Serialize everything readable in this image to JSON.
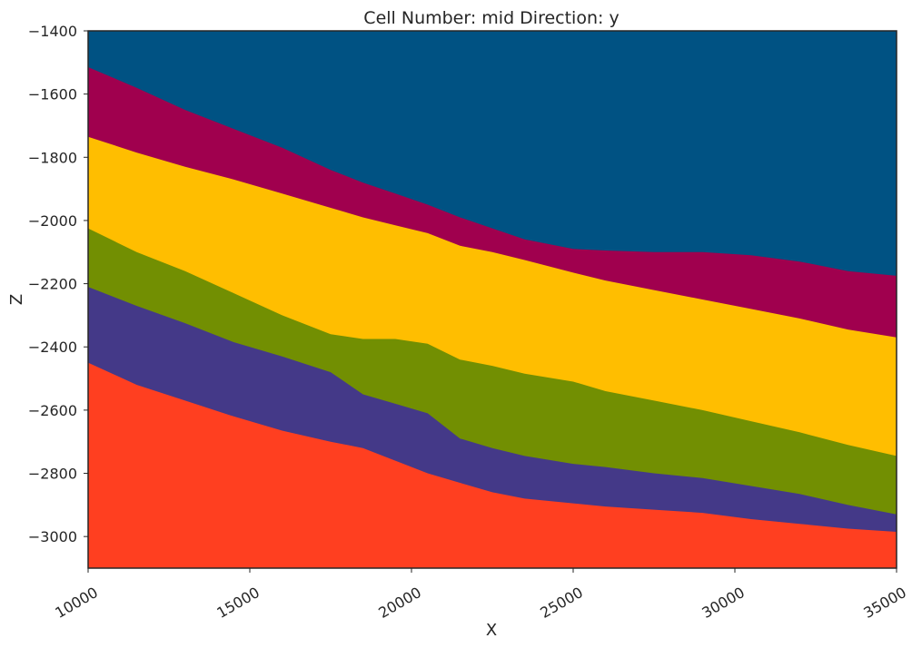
{
  "chart_data": {
    "type": "area",
    "title": "Cell Number: mid Direction: y",
    "xlabel": "X",
    "ylabel": "Z",
    "xlim": [
      10000,
      35000
    ],
    "ylim": [
      -3100,
      -1400
    ],
    "xticks": [
      10000,
      15000,
      20000,
      25000,
      30000,
      35000
    ],
    "xtick_labels": [
      "10000",
      "15000",
      "20000",
      "25000",
      "30000",
      "35000"
    ],
    "yticks": [
      -1400,
      -1600,
      -1800,
      -2000,
      -2200,
      -2400,
      -2600,
      -2800,
      -3000
    ],
    "ytick_labels": [
      "−1400",
      "−1600",
      "−1800",
      "−2000",
      "−2200",
      "−2400",
      "−2600",
      "−2800",
      "−3000"
    ],
    "grid": false,
    "background_color": "#005283",
    "layers": [
      {
        "color": "#A0004E",
        "top_x": [
          10000,
          11500,
          13000,
          14500,
          16000,
          17500,
          18500,
          19500,
          20500,
          21500,
          22500,
          23500,
          25000,
          26000,
          27500,
          29000,
          30500,
          32000,
          33500,
          35000
        ],
        "top_z": [
          -1515,
          -1580,
          -1650,
          -1710,
          -1770,
          -1840,
          -1880,
          -1915,
          -1950,
          -1990,
          -2025,
          -2060,
          -2090,
          -2095,
          -2100,
          -2100,
          -2110,
          -2130,
          -2160,
          -2175
        ]
      },
      {
        "color": "#FFBE00",
        "top_x": [
          10000,
          11500,
          13000,
          14500,
          16000,
          17500,
          18500,
          19500,
          20500,
          21500,
          22500,
          23500,
          25000,
          26000,
          27500,
          29000,
          30500,
          32000,
          33500,
          35000
        ],
        "top_z": [
          -1735,
          -1785,
          -1830,
          -1870,
          -1915,
          -1960,
          -1990,
          -2015,
          -2040,
          -2080,
          -2100,
          -2125,
          -2165,
          -2190,
          -2220,
          -2250,
          -2280,
          -2310,
          -2345,
          -2370
        ]
      },
      {
        "color": "#728F02",
        "top_x": [
          10000,
          11500,
          13000,
          14500,
          16000,
          17500,
          18500,
          19500,
          20500,
          21500,
          22500,
          23500,
          25000,
          26000,
          27500,
          29000,
          30500,
          32000,
          33500,
          35000
        ],
        "top_z": [
          -2025,
          -2100,
          -2160,
          -2230,
          -2300,
          -2360,
          -2375,
          -2375,
          -2390,
          -2440,
          -2460,
          -2485,
          -2510,
          -2540,
          -2570,
          -2600,
          -2635,
          -2670,
          -2710,
          -2745
        ]
      },
      {
        "color": "#443988",
        "top_x": [
          10000,
          11500,
          13000,
          14500,
          16000,
          17500,
          18500,
          19500,
          20500,
          21500,
          22500,
          23500,
          25000,
          26000,
          27500,
          29000,
          30500,
          32000,
          33500,
          35000
        ],
        "top_z": [
          -2210,
          -2270,
          -2325,
          -2385,
          -2430,
          -2480,
          -2550,
          -2580,
          -2610,
          -2690,
          -2720,
          -2745,
          -2770,
          -2780,
          -2800,
          -2815,
          -2840,
          -2865,
          -2900,
          -2930
        ]
      },
      {
        "color": "#FF3F20",
        "top_x": [
          10000,
          11500,
          13000,
          14500,
          16000,
          17500,
          18500,
          19500,
          20500,
          21500,
          22500,
          23500,
          25000,
          26000,
          27500,
          29000,
          30500,
          32000,
          33500,
          35000
        ],
        "top_z": [
          -2450,
          -2520,
          -2570,
          -2620,
          -2665,
          -2700,
          -2720,
          -2760,
          -2800,
          -2830,
          -2860,
          -2880,
          -2895,
          -2905,
          -2915,
          -2925,
          -2945,
          -2960,
          -2975,
          -2985
        ]
      }
    ]
  }
}
